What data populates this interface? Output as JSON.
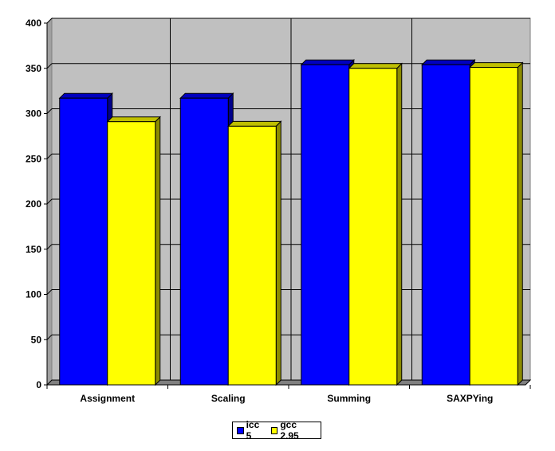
{
  "chart_data": {
    "type": "bar",
    "categories": [
      "Assignment",
      "Scaling",
      "Summing",
      "SAXPYing"
    ],
    "series": [
      {
        "name": "icc 5",
        "values": [
          317,
          317,
          354,
          354
        ],
        "color": "#0000ff"
      },
      {
        "name": "gcc 2.95",
        "values": [
          291,
          286,
          350,
          351
        ],
        "color": "#ffff00"
      }
    ],
    "title": "",
    "xlabel": "",
    "ylabel": "",
    "ylim": [
      0,
      400
    ],
    "yticks": [
      "0",
      "50",
      "100",
      "150",
      "200",
      "250",
      "300",
      "350",
      "400"
    ],
    "grid": true,
    "legend_position": "bottom",
    "plot_background": "#c0c0c0",
    "floor_color": "#808080"
  }
}
